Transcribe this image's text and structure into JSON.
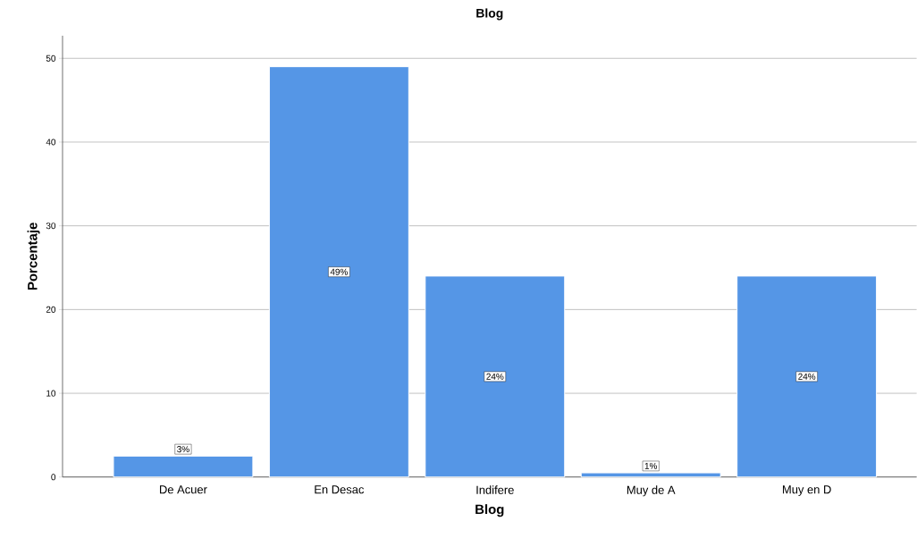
{
  "chart_data": {
    "type": "bar",
    "title": "Blog",
    "xlabel": "Blog",
    "ylabel": "Porcentaje",
    "categories": [
      "De Acuer",
      "En Desac",
      "Indifere",
      "Muy de A",
      "Muy en D"
    ],
    "values": [
      2.5,
      49,
      24,
      0.5,
      24
    ],
    "value_labels": [
      "3%",
      "49%",
      "24%",
      "1%",
      "24%"
    ],
    "color": "#5596e6",
    "ylim": [
      0,
      52.7
    ],
    "yticks": [
      0,
      10,
      20,
      30,
      40,
      50
    ],
    "grid": "y"
  }
}
